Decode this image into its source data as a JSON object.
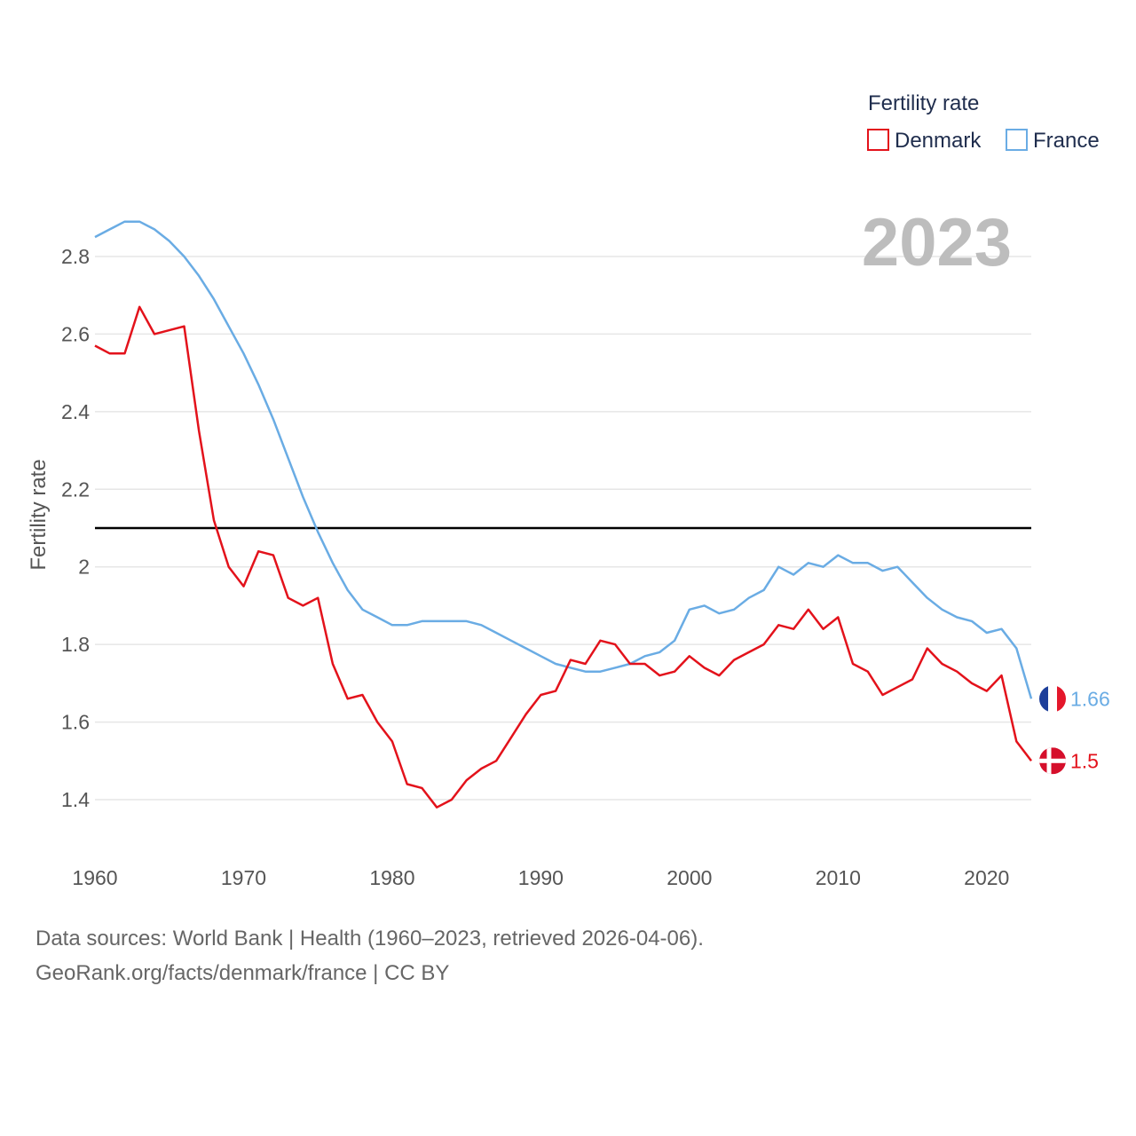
{
  "chart_data": {
    "type": "line",
    "year_label": "2023",
    "legend_title": "Fertility rate",
    "ylabel": "Fertility rate",
    "xlabel": "",
    "ylim": [
      1.25,
      3.0
    ],
    "xlim": [
      1960,
      2023
    ],
    "x_ticks": [
      1960,
      1970,
      1980,
      1990,
      2000,
      2010,
      2020
    ],
    "x_tick_labels": [
      "1960",
      "1970",
      "1980",
      "1990",
      "2000",
      "2010",
      "2020"
    ],
    "y_ticks": [
      1.4,
      1.6,
      1.8,
      2.0,
      2.2,
      2.4,
      2.6,
      2.8
    ],
    "y_tick_labels": [
      "1.4",
      "1.6",
      "1.8",
      "2",
      "2.2",
      "2.4",
      "2.6",
      "2.8"
    ],
    "reference_line": 2.1,
    "grid": true,
    "legend_position": "top-right",
    "x": [
      1960,
      1961,
      1962,
      1963,
      1964,
      1965,
      1966,
      1967,
      1968,
      1969,
      1970,
      1971,
      1972,
      1973,
      1974,
      1975,
      1976,
      1977,
      1978,
      1979,
      1980,
      1981,
      1982,
      1983,
      1984,
      1985,
      1986,
      1987,
      1988,
      1989,
      1990,
      1991,
      1992,
      1993,
      1994,
      1995,
      1996,
      1997,
      1998,
      1999,
      2000,
      2001,
      2002,
      2003,
      2004,
      2005,
      2006,
      2007,
      2008,
      2009,
      2010,
      2011,
      2012,
      2013,
      2014,
      2015,
      2016,
      2017,
      2018,
      2019,
      2020,
      2021,
      2022,
      2023
    ],
    "series": [
      {
        "name": "Denmark",
        "color": "#e3121b",
        "end_label": "1.5",
        "flag": "denmark-flag",
        "values": [
          2.57,
          2.55,
          2.55,
          2.67,
          2.6,
          2.61,
          2.62,
          2.35,
          2.12,
          2.0,
          1.95,
          2.04,
          2.03,
          1.92,
          1.9,
          1.92,
          1.75,
          1.66,
          1.67,
          1.6,
          1.55,
          1.44,
          1.43,
          1.38,
          1.4,
          1.45,
          1.48,
          1.5,
          1.56,
          1.62,
          1.67,
          1.68,
          1.76,
          1.75,
          1.81,
          1.8,
          1.75,
          1.75,
          1.72,
          1.73,
          1.77,
          1.74,
          1.72,
          1.76,
          1.78,
          1.8,
          1.85,
          1.84,
          1.89,
          1.84,
          1.87,
          1.75,
          1.73,
          1.67,
          1.69,
          1.71,
          1.79,
          1.75,
          1.73,
          1.7,
          1.68,
          1.72,
          1.55,
          1.5
        ]
      },
      {
        "name": "France",
        "color": "#6aace4",
        "end_label": "1.66",
        "flag": "france-flag",
        "values": [
          2.85,
          2.87,
          2.89,
          2.89,
          2.87,
          2.84,
          2.8,
          2.75,
          2.69,
          2.62,
          2.55,
          2.47,
          2.38,
          2.28,
          2.18,
          2.09,
          2.01,
          1.94,
          1.89,
          1.87,
          1.85,
          1.85,
          1.86,
          1.86,
          1.86,
          1.86,
          1.85,
          1.83,
          1.81,
          1.79,
          1.77,
          1.75,
          1.74,
          1.73,
          1.73,
          1.74,
          1.75,
          1.77,
          1.78,
          1.81,
          1.89,
          1.9,
          1.88,
          1.89,
          1.92,
          1.94,
          2.0,
          1.98,
          2.01,
          2.0,
          2.03,
          2.01,
          2.01,
          1.99,
          2.0,
          1.96,
          1.92,
          1.89,
          1.87,
          1.86,
          1.83,
          1.84,
          1.79,
          1.66
        ]
      }
    ]
  },
  "footer": {
    "line1": "Data sources: World Bank | Health (1960–2023, retrieved 2026-04-06).",
    "line2": "GeoRank.org/facts/denmark/france | CC BY"
  }
}
